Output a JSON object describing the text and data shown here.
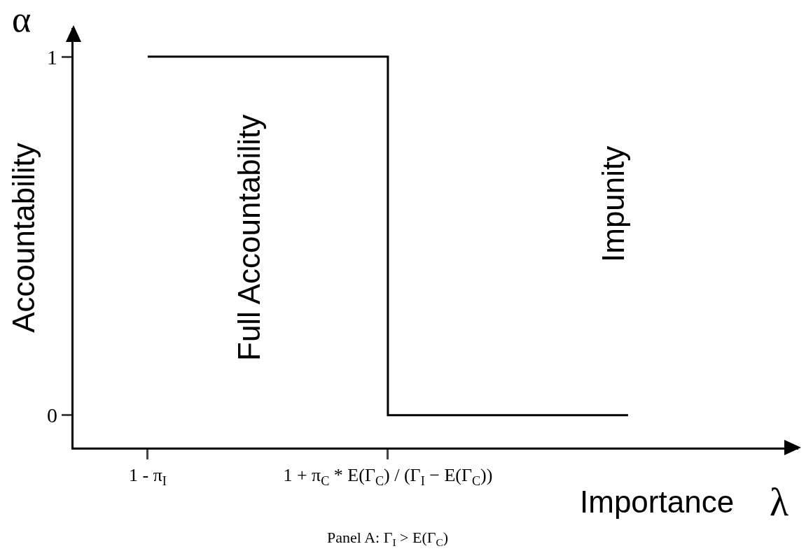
{
  "chart_data": {
    "type": "step",
    "ylabel": "Accountability",
    "xlabel": "Importance",
    "categories": [
      "1 - π$_{I}$",
      "1 + π$_{C}$ * E(Γ$_{C}$) / (Γ$_{I}$ − E(Γ$_{C}$))",
      null
    ],
    "series": [
      {
        "color": "#000000",
        "values": [
          1,
          0,
          0
        ]
      }
    ],
    "ylim": [
      -0.09,
      1.08
    ],
    "yticks": [
      0,
      1
    ],
    "grid": false,
    "marker": "none",
    "line_style": "solid",
    "annotations": [
      "Full Accountability",
      "Impunity",
      "Panel A: Γ$_{I}$ > E(Γ$_{C}$)",
      "α",
      "λ"
    ]
  }
}
